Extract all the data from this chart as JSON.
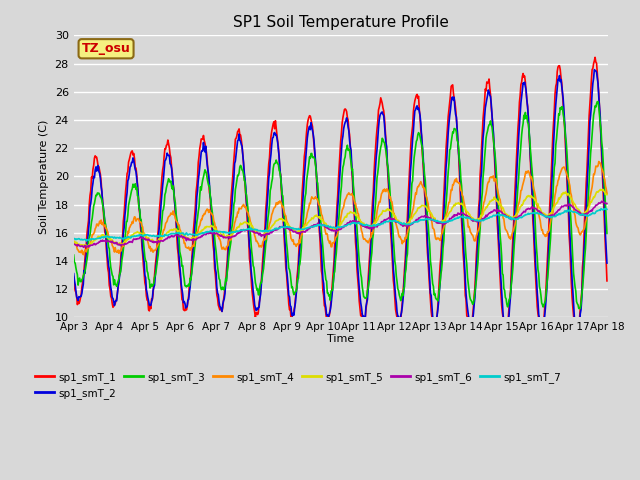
{
  "title": "SP1 Soil Temperature Profile",
  "xlabel": "Time",
  "ylabel": "Soil Temperature (C)",
  "ylim": [
    10,
    30
  ],
  "bg_color": "#d8d8d8",
  "plot_bg_color": "#d8d8d8",
  "annotation_text": "TZ_osu",
  "annotation_bg": "#f5f080",
  "annotation_border": "#8B6914",
  "annotation_text_color": "#cc0000",
  "series_colors": {
    "sp1_smT_1": "#ff0000",
    "sp1_smT_2": "#0000dd",
    "sp1_smT_3": "#00cc00",
    "sp1_smT_4": "#ff8800",
    "sp1_smT_5": "#dddd00",
    "sp1_smT_6": "#aa00aa",
    "sp1_smT_7": "#00cccc"
  },
  "xtick_labels": [
    "Apr 3",
    "Apr 4",
    "Apr 5",
    "Apr 6",
    "Apr 7",
    "Apr 8",
    "Apr 9",
    "Apr 10",
    "Apr 11",
    "Apr 12",
    "Apr 13",
    "Apr 14",
    "Apr 15",
    "Apr 16",
    "Apr 17",
    "Apr 18"
  ],
  "n_days": 15,
  "pts_per_day": 48
}
